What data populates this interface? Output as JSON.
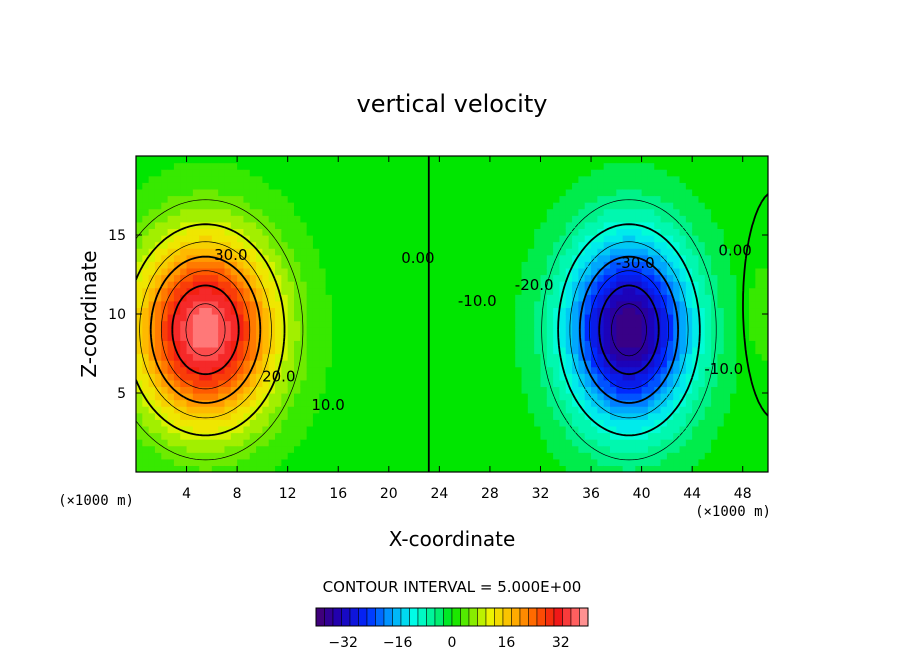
{
  "chart_data": {
    "type": "heatmap",
    "title": "vertical velocity",
    "xlabel": "X-coordinate",
    "ylabel": "Z-coordinate",
    "x_unit": "(×1000 m)",
    "z_unit": "(×1000 m)",
    "xlim": [
      0,
      50
    ],
    "ylim": [
      0,
      20
    ],
    "x_ticks": [
      4,
      8,
      12,
      16,
      20,
      24,
      28,
      32,
      36,
      40,
      44,
      48
    ],
    "y_ticks": [
      5,
      10,
      15
    ],
    "contour_interval_text": "CONTOUR INTERVAL = 5.000E+00",
    "contour_interval": 5,
    "contour_labels": [
      {
        "text": "30.0",
        "x": 7.5,
        "z": 13.7
      },
      {
        "text": "20.0",
        "x": 11.3,
        "z": 6.0
      },
      {
        "text": "10.0",
        "x": 15.2,
        "z": 4.2
      },
      {
        "text": "0.00",
        "x": 22.3,
        "z": 13.5
      },
      {
        "text": "-10.0",
        "x": 27.0,
        "z": 10.8
      },
      {
        "text": "-20.0",
        "x": 31.5,
        "z": 11.8
      },
      {
        "text": "-30.0",
        "x": 39.5,
        "z": 13.2
      },
      {
        "text": "-10.0",
        "x": 46.5,
        "z": 6.5
      },
      {
        "text": "0.00",
        "x": 47.4,
        "z": 14.0
      }
    ],
    "extrema": {
      "max": {
        "x": 5.5,
        "z": 9.0,
        "value": 38
      },
      "min": {
        "x": 39.0,
        "z": 9.0,
        "value": -38
      }
    },
    "colorbar": {
      "range": [
        -40,
        40
      ],
      "ticks": [
        -32,
        -16,
        0,
        16,
        32
      ],
      "tick_labels": [
        "−32",
        "−16",
        "0",
        "16",
        "32"
      ]
    }
  },
  "colors": {
    "background": "#ffffff",
    "zero": "#00e600",
    "positive_max": "#ff9d9d",
    "negative_min": "#6a00b0"
  }
}
